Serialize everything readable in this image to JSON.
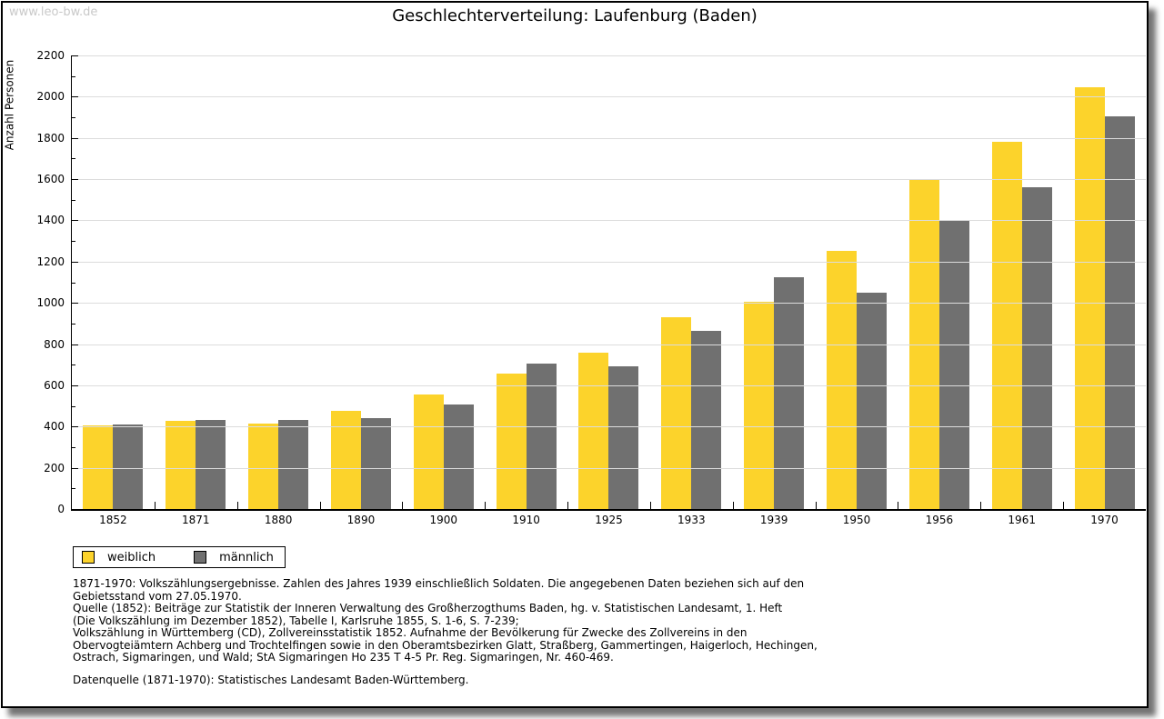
{
  "watermark": "www.leo-bw.de",
  "header": {
    "title": "Geschlechterverteilung: Laufenburg (Baden)"
  },
  "chart_data": {
    "type": "bar",
    "title": "Geschlechterverteilung: Laufenburg (Baden)",
    "xlabel": "",
    "ylabel": "Anzahl Personen",
    "categories": [
      "1852",
      "1871",
      "1880",
      "1890",
      "1900",
      "1910",
      "1925",
      "1933",
      "1939",
      "1950",
      "1956",
      "1961",
      "1970"
    ],
    "series": [
      {
        "name": "weiblich",
        "color": "#FCD32B",
        "values": [
          405,
          426,
          413,
          476,
          557,
          655,
          760,
          930,
          1005,
          1253,
          1600,
          1780,
          2045
        ]
      },
      {
        "name": "männlich",
        "color": "#707070",
        "values": [
          410,
          431,
          430,
          443,
          505,
          707,
          692,
          865,
          1125,
          1050,
          1400,
          1560,
          1905
        ]
      }
    ],
    "ylim": [
      0,
      2200
    ],
    "ytick_step": 200,
    "yminor_step": 100,
    "grid": true,
    "legend_position": "bottom-left"
  },
  "legend": {
    "items": [
      {
        "label": "weiblich",
        "color": "#FCD32B"
      },
      {
        "label": "männlich",
        "color": "#707070"
      }
    ]
  },
  "footnotes": {
    "lines": [
      "1871-1970: Volkszählungsergebnisse. Zahlen des Jahres 1939 einschließlich Soldaten. Die angegebenen Daten beziehen sich auf den",
      "Gebietsstand vom 27.05.1970.",
      "Quelle (1852): Beiträge zur Statistik der Inneren Verwaltung des Großherzogthums Baden, hg. v. Statistischen Landesamt, 1. Heft",
      "(Die Volkszählung im Dezember 1852), Tabelle I, Karlsruhe 1855, S. 1-6, S. 7-239;",
      "Volkszählung in Württemberg (CD), Zollvereinsstatistik 1852. Aufnahme der Bevölkerung für Zwecke des Zollvereins in den",
      "Obervogteiämtern Achberg und Trochtelfingen sowie in den Oberamtsbezirken Glatt, Straßberg, Gammertingen, Haigerloch, Hechingen,",
      "Ostrach, Sigmaringen, und Wald; StA Sigmaringen Ho 235 T 4-5 Pr. Reg. Sigmaringen, Nr. 460-469."
    ],
    "datasource": "Datenquelle (1871-1970): Statistisches Landesamt Baden-Württemberg."
  },
  "colors": {
    "female_bar": "#FCD32B",
    "male_bar": "#707070",
    "gridline": "#dcdcdc",
    "watermark": "#c9c9c9",
    "frame_border": "#000000"
  }
}
